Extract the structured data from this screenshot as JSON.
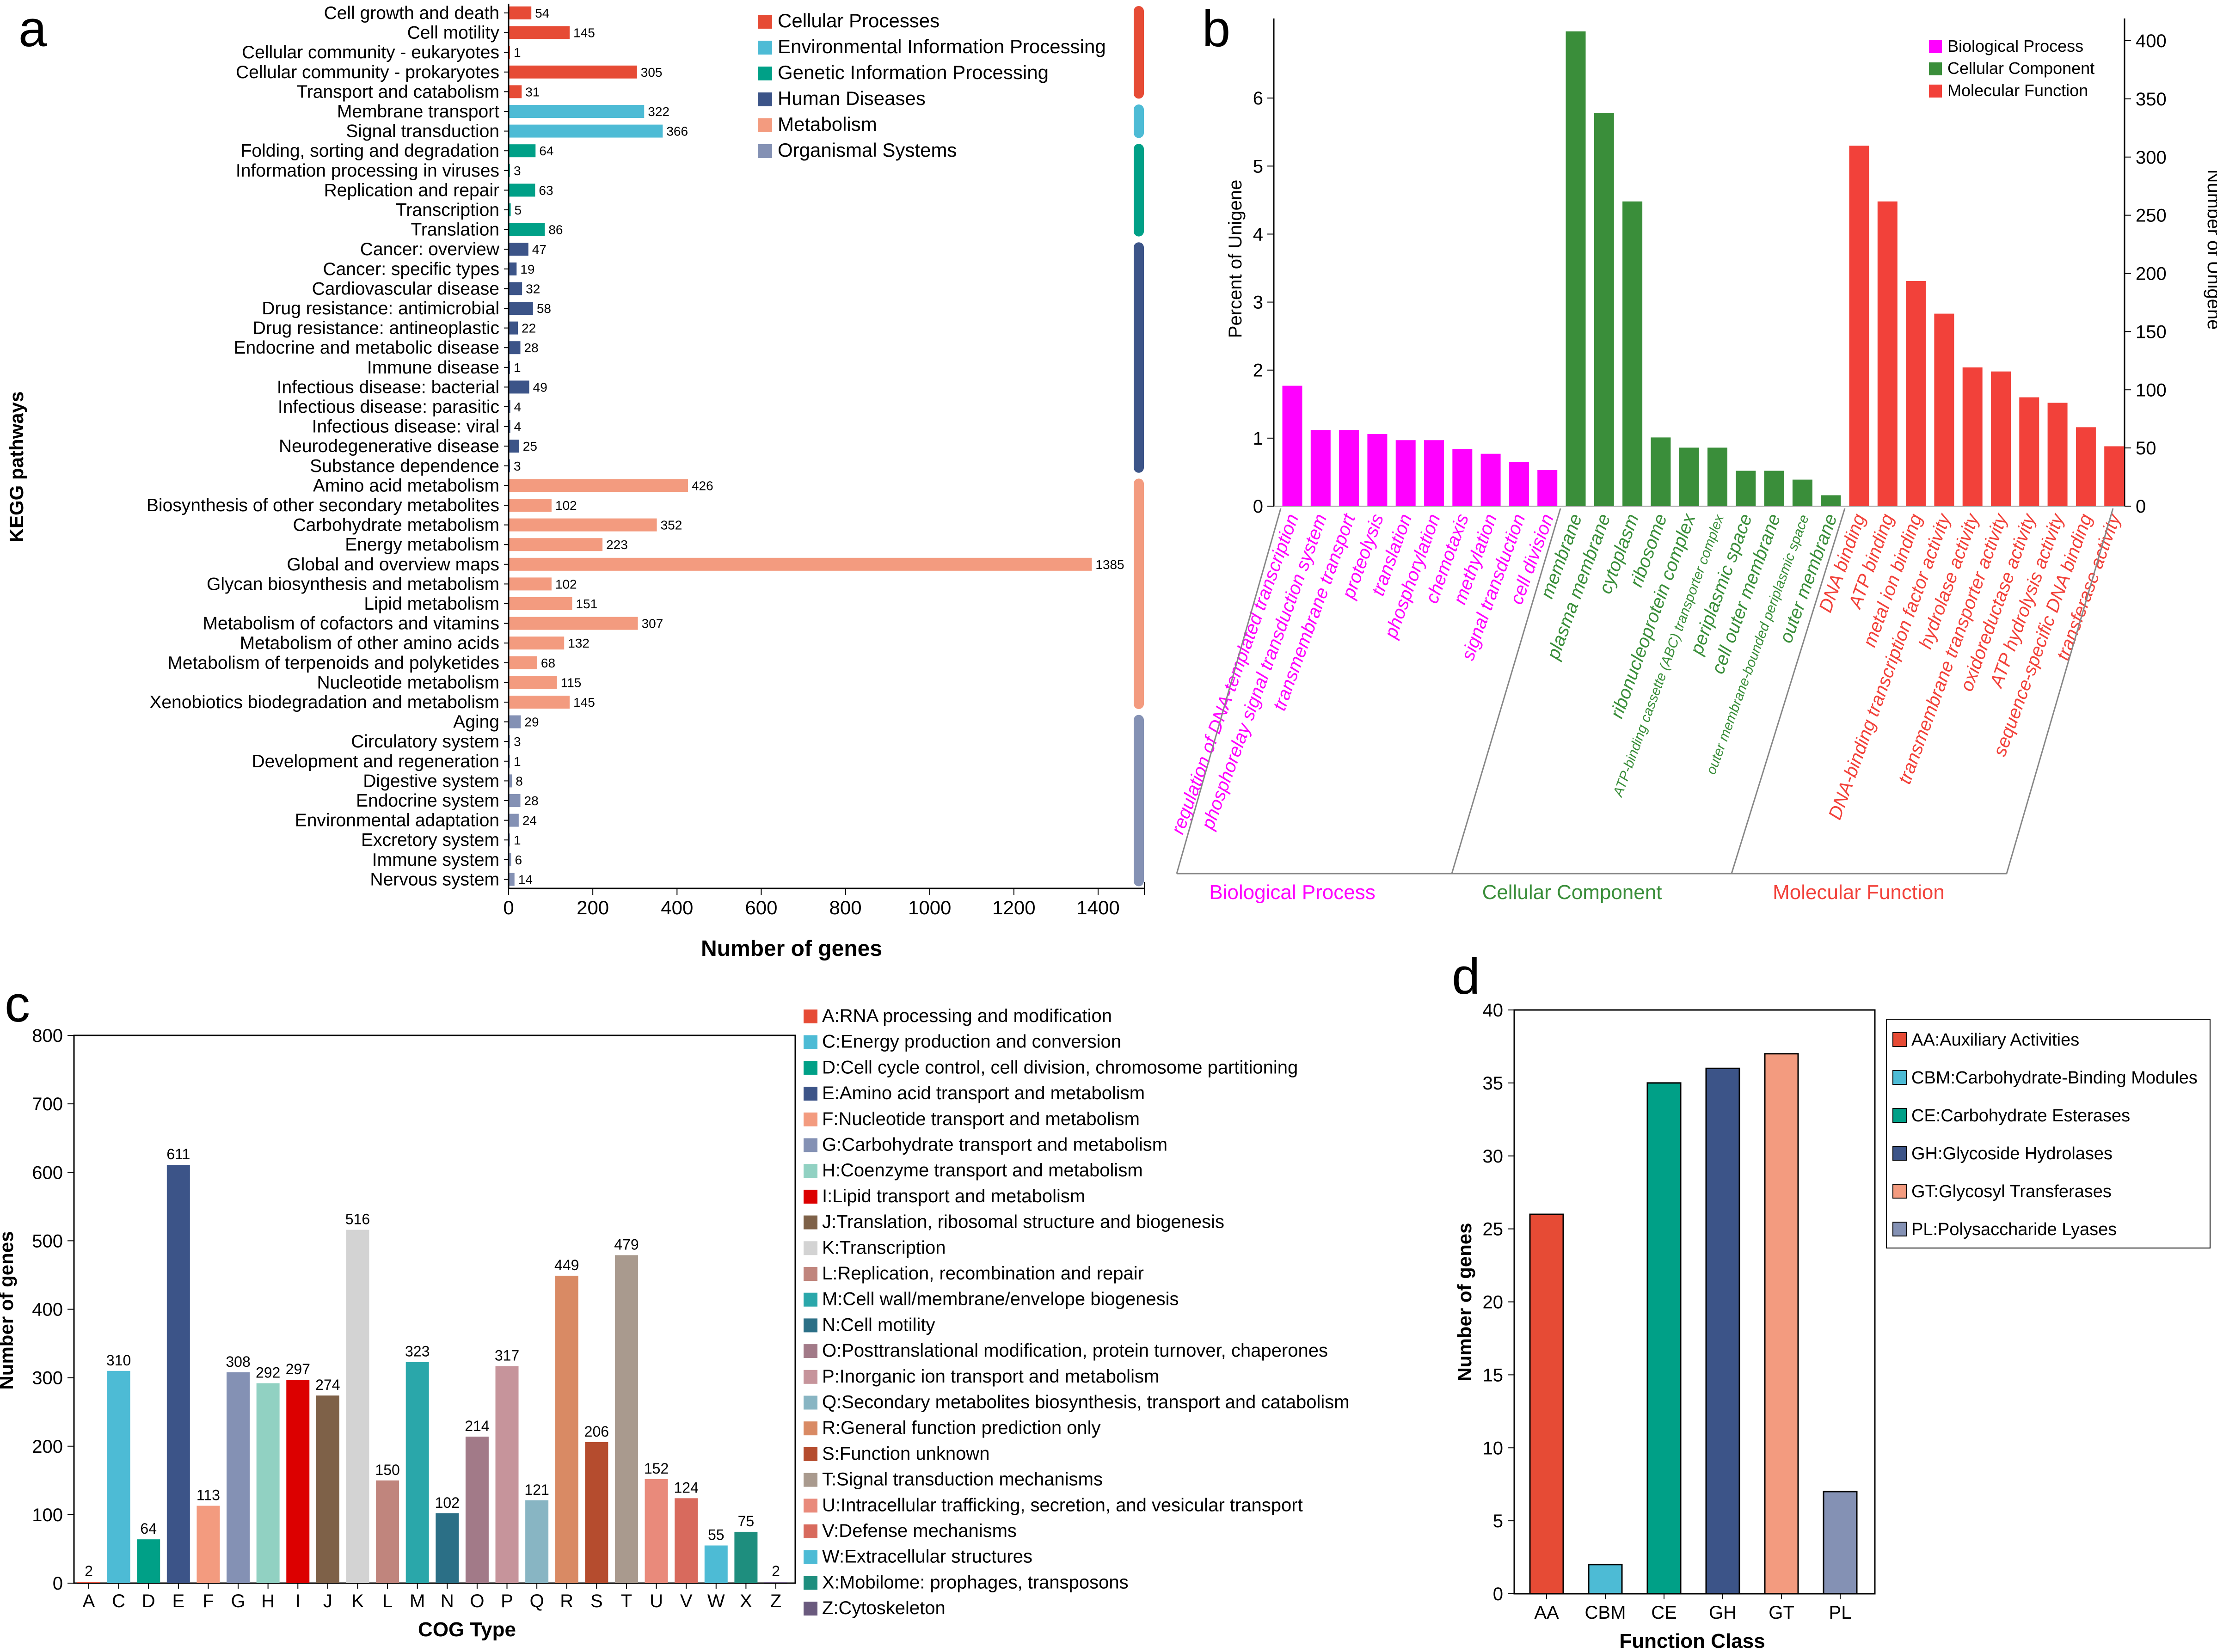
{
  "panels": {
    "a": "a",
    "b": "b",
    "c": "c",
    "d": "d"
  },
  "chart_data": [
    {
      "id": "a",
      "type": "bar",
      "orientation": "horizontal",
      "title": "",
      "xlabel": "Number of genes",
      "ylabel": "KEGG pathways",
      "xlim": [
        0,
        1450
      ],
      "xticks": [
        0,
        200,
        400,
        600,
        800,
        1000,
        1200,
        1400
      ],
      "legend": [
        {
          "name": "Cellular Processes",
          "color": "#e64b35"
        },
        {
          "name": "Environmental Information Processing",
          "color": "#4dbbd5"
        },
        {
          "name": "Genetic Information Processing",
          "color": "#00a087"
        },
        {
          "name": "Human Diseases",
          "color": "#3c5488"
        },
        {
          "name": "Metabolism",
          "color": "#f39b7f"
        },
        {
          "name": "Organismal Systems",
          "color": "#8491b4"
        }
      ],
      "bars": [
        {
          "label": "Cell growth and death",
          "value": 54,
          "group": 0
        },
        {
          "label": "Cell motility",
          "value": 145,
          "group": 0
        },
        {
          "label": "Cellular community - eukaryotes",
          "value": 1,
          "group": 0
        },
        {
          "label": "Cellular community - prokaryotes",
          "value": 305,
          "group": 0
        },
        {
          "label": "Transport and catabolism",
          "value": 31,
          "group": 0
        },
        {
          "label": "Membrane transport",
          "value": 322,
          "group": 1
        },
        {
          "label": "Signal transduction",
          "value": 366,
          "group": 1
        },
        {
          "label": "Folding, sorting and degradation",
          "value": 64,
          "group": 2
        },
        {
          "label": "Information processing in viruses",
          "value": 3,
          "group": 2
        },
        {
          "label": "Replication and repair",
          "value": 63,
          "group": 2
        },
        {
          "label": "Transcription",
          "value": 5,
          "group": 2
        },
        {
          "label": "Translation",
          "value": 86,
          "group": 2
        },
        {
          "label": "Cancer: overview",
          "value": 47,
          "group": 3
        },
        {
          "label": "Cancer: specific types",
          "value": 19,
          "group": 3
        },
        {
          "label": "Cardiovascular disease",
          "value": 32,
          "group": 3
        },
        {
          "label": "Drug resistance: antimicrobial",
          "value": 58,
          "group": 3
        },
        {
          "label": "Drug resistance: antineoplastic",
          "value": 22,
          "group": 3
        },
        {
          "label": "Endocrine and metabolic disease",
          "value": 28,
          "group": 3
        },
        {
          "label": "Immune disease",
          "value": 1,
          "group": 3
        },
        {
          "label": "Infectious disease: bacterial",
          "value": 49,
          "group": 3
        },
        {
          "label": "Infectious disease: parasitic",
          "value": 4,
          "group": 3
        },
        {
          "label": "Infectious disease: viral",
          "value": 4,
          "group": 3
        },
        {
          "label": "Neurodegenerative disease",
          "value": 25,
          "group": 3
        },
        {
          "label": "Substance dependence",
          "value": 3,
          "group": 3
        },
        {
          "label": "Amino acid metabolism",
          "value": 426,
          "group": 4
        },
        {
          "label": "Biosynthesis of other secondary metabolites",
          "value": 102,
          "group": 4
        },
        {
          "label": "Carbohydrate metabolism",
          "value": 352,
          "group": 4
        },
        {
          "label": "Energy metabolism",
          "value": 223,
          "group": 4
        },
        {
          "label": "Global and overview maps",
          "value": 1385,
          "group": 4
        },
        {
          "label": "Glycan biosynthesis and metabolism",
          "value": 102,
          "group": 4
        },
        {
          "label": "Lipid metabolism",
          "value": 151,
          "group": 4
        },
        {
          "label": "Metabolism of cofactors and vitamins",
          "value": 307,
          "group": 4
        },
        {
          "label": "Metabolism of other amino acids",
          "value": 132,
          "group": 4
        },
        {
          "label": "Metabolism of terpenoids and polyketides",
          "value": 68,
          "group": 4
        },
        {
          "label": "Nucleotide metabolism",
          "value": 115,
          "group": 4
        },
        {
          "label": "Xenobiotics biodegradation and metabolism",
          "value": 145,
          "group": 4
        },
        {
          "label": "Aging",
          "value": 29,
          "group": 5
        },
        {
          "label": "Circulatory system",
          "value": 3,
          "group": 5
        },
        {
          "label": "Development and regeneration",
          "value": 1,
          "group": 5
        },
        {
          "label": "Digestive system",
          "value": 8,
          "group": 5
        },
        {
          "label": "Endocrine system",
          "value": 28,
          "group": 5
        },
        {
          "label": "Environmental adaptation",
          "value": 24,
          "group": 5
        },
        {
          "label": "Excretory system",
          "value": 1,
          "group": 5
        },
        {
          "label": "Immune system",
          "value": 6,
          "group": 5
        },
        {
          "label": "Nervous system",
          "value": 14,
          "group": 5
        }
      ]
    },
    {
      "id": "b",
      "type": "bar",
      "title": "",
      "ylabel_left": "Percent of Unigene",
      "ylabel_right": "Number of Unigene",
      "ylim_left": [
        0,
        7.1
      ],
      "yticks_left": [
        0,
        1,
        2,
        3,
        4,
        5,
        6
      ],
      "ylim_right": [
        0,
        415
      ],
      "yticks_right": [
        0,
        50,
        100,
        150,
        200,
        250,
        300,
        350,
        400
      ],
      "legend": [
        {
          "name": "Biological Process",
          "color": "#ff00ff"
        },
        {
          "name": "Cellular Component",
          "color": "#3a8e3a"
        },
        {
          "name": "Molecular Function",
          "color": "#f2413a"
        }
      ],
      "groups": [
        "Biological Process",
        "Cellular Component",
        "Molecular Function"
      ],
      "bars": [
        {
          "label": "regulation of DNA-templated transcription",
          "value": 1.77,
          "group": 0
        },
        {
          "label": "phosphorelay signal transduction system",
          "value": 1.12,
          "group": 0
        },
        {
          "label": "transmembrane transport",
          "value": 1.12,
          "group": 0
        },
        {
          "label": "proteolysis",
          "value": 1.06,
          "group": 0
        },
        {
          "label": "translation",
          "value": 0.97,
          "group": 0
        },
        {
          "label": "phosphorylation",
          "value": 0.97,
          "group": 0
        },
        {
          "label": "chemotaxis",
          "value": 0.84,
          "group": 0
        },
        {
          "label": "methylation",
          "value": 0.77,
          "group": 0
        },
        {
          "label": "signal transduction",
          "value": 0.65,
          "group": 0
        },
        {
          "label": "cell division",
          "value": 0.53,
          "group": 0
        },
        {
          "label": "membrane",
          "value": 6.98,
          "group": 1
        },
        {
          "label": "plasma membrane",
          "value": 5.78,
          "group": 1
        },
        {
          "label": "cytoplasm",
          "value": 4.48,
          "group": 1
        },
        {
          "label": "ribosome",
          "value": 1.01,
          "group": 1
        },
        {
          "label": "ribonucleoprotein complex",
          "value": 0.86,
          "group": 1
        },
        {
          "label": "ATP-binding cassette (ABC) transporter complex",
          "value": 0.86,
          "group": 1
        },
        {
          "label": "periplasmic space",
          "value": 0.52,
          "group": 1
        },
        {
          "label": "cell outer membrane",
          "value": 0.52,
          "group": 1
        },
        {
          "label": "outer membrane-bounded periplasmic space",
          "value": 0.39,
          "group": 1
        },
        {
          "label": "outer membrane",
          "value": 0.16,
          "group": 1
        },
        {
          "label": "DNA binding",
          "value": 5.3,
          "group": 2
        },
        {
          "label": "ATP binding",
          "value": 4.48,
          "group": 2
        },
        {
          "label": "metal ion binding",
          "value": 3.31,
          "group": 2
        },
        {
          "label": "DNA-binding transcription factor activity",
          "value": 2.83,
          "group": 2
        },
        {
          "label": "hydrolase activity",
          "value": 2.04,
          "group": 2
        },
        {
          "label": "transmembrane transporter activity",
          "value": 1.98,
          "group": 2
        },
        {
          "label": "oxidoreductase activity",
          "value": 1.6,
          "group": 2
        },
        {
          "label": "ATP hydrolysis activity",
          "value": 1.52,
          "group": 2
        },
        {
          "label": "sequence-specific DNA binding",
          "value": 1.16,
          "group": 2
        },
        {
          "label": "transferase activity",
          "value": 0.88,
          "group": 2
        }
      ]
    },
    {
      "id": "c",
      "type": "bar",
      "title": "",
      "xlabel": "COG Type",
      "ylabel": "Number of genes",
      "ylim": [
        0,
        800
      ],
      "yticks": [
        0,
        100,
        200,
        300,
        400,
        500,
        600,
        700,
        800
      ],
      "categories": [
        "A",
        "C",
        "D",
        "E",
        "F",
        "G",
        "H",
        "I",
        "J",
        "K",
        "L",
        "M",
        "N",
        "O",
        "P",
        "Q",
        "R",
        "S",
        "T",
        "U",
        "V",
        "W",
        "X",
        "Z"
      ],
      "values": [
        2,
        310,
        64,
        611,
        113,
        308,
        292,
        297,
        274,
        516,
        150,
        323,
        102,
        214,
        317,
        121,
        449,
        206,
        479,
        152,
        124,
        55,
        75,
        2
      ],
      "colors": [
        "#e64b35",
        "#4dbbd5",
        "#00a087",
        "#3c5488",
        "#f39b7f",
        "#8491b4",
        "#91d1c2",
        "#dc0000",
        "#7e6148",
        "#d3d3d3",
        "#c0857d",
        "#2aa7aa",
        "#2b6f86",
        "#a27a88",
        "#c6949b",
        "#88b5c3",
        "#d98a64",
        "#b54c2e",
        "#a99a8e",
        "#e98a7b",
        "#d86a5d",
        "#4dbbd5",
        "#1e8e7e",
        "#6a5a7e"
      ],
      "legend": [
        "A:RNA processing and modification",
        "C:Energy production and conversion",
        "D:Cell cycle control, cell division, chromosome partitioning",
        "E:Amino acid transport and metabolism",
        "F:Nucleotide transport and metabolism",
        "G:Carbohydrate transport and metabolism",
        "H:Coenzyme transport and metabolism",
        "I:Lipid transport and metabolism",
        "J:Translation, ribosomal structure and biogenesis",
        "K:Transcription",
        "L:Replication, recombination and repair",
        "M:Cell wall/membrane/envelope biogenesis",
        "N:Cell motility",
        "O:Posttranslational modification, protein turnover, chaperones",
        "P:Inorganic ion transport and metabolism",
        "Q:Secondary metabolites biosynthesis, transport and catabolism",
        "R:General function prediction only",
        "S:Function unknown",
        "T:Signal transduction mechanisms",
        "U:Intracellular trafficking, secretion, and vesicular transport",
        "V:Defense mechanisms",
        "W:Extracellular structures",
        "X:Mobilome: prophages, transposons",
        "Z:Cytoskeleton"
      ]
    },
    {
      "id": "d",
      "type": "bar",
      "title": "",
      "xlabel": "Function Class",
      "ylabel": "Number of genes",
      "ylim": [
        0,
        40
      ],
      "yticks": [
        0,
        5,
        10,
        15,
        20,
        25,
        30,
        35,
        40
      ],
      "categories": [
        "AA",
        "CBM",
        "CE",
        "GH",
        "GT",
        "PL"
      ],
      "values": [
        26,
        2,
        35,
        36,
        37,
        7
      ],
      "colors": [
        "#e64b35",
        "#4dbbd5",
        "#00a087",
        "#3c5488",
        "#f39b7f",
        "#8491b4"
      ],
      "legend": [
        "AA:Auxiliary Activities",
        "CBM:Carbohydrate-Binding Modules",
        "CE:Carbohydrate Esterases",
        "GH:Glycoside Hydrolases",
        "GT:Glycosyl Transferases",
        "PL:Polysaccharide Lyases"
      ]
    }
  ]
}
